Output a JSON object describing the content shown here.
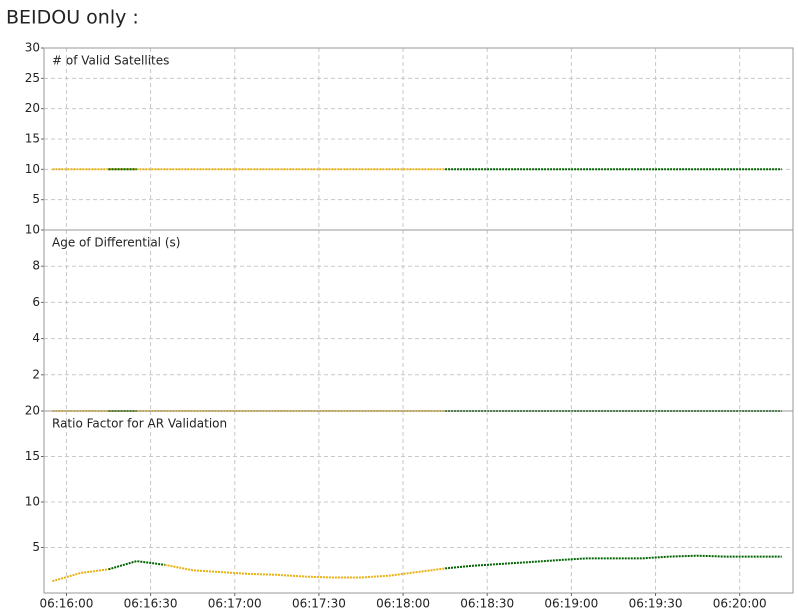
{
  "title": "BEIDOU only :",
  "chart_data": [
    {
      "type": "line",
      "title": "# of Valid Satellites",
      "x": [
        "06:15:55",
        "06:16:05",
        "06:16:15",
        "06:16:25",
        "06:16:35",
        "06:16:45",
        "06:16:55",
        "06:17:05",
        "06:17:15",
        "06:17:25",
        "06:17:35",
        "06:17:45",
        "06:17:55",
        "06:18:05",
        "06:18:15",
        "06:18:25",
        "06:18:35",
        "06:18:45",
        "06:18:55",
        "06:19:05",
        "06:19:15",
        "06:19:25",
        "06:19:35",
        "06:19:45",
        "06:19:55",
        "06:20:05",
        "06:20:15"
      ],
      "xlim": [
        "06:15:52",
        "06:20:19"
      ],
      "ylim": [
        0,
        30
      ],
      "yticks": [
        5,
        10,
        15,
        20,
        25,
        30
      ],
      "grid": true,
      "series": [
        {
          "color": "#e8b010",
          "values": [
            10,
            10,
            10,
            10,
            10,
            10,
            10,
            10,
            10,
            10,
            10,
            10,
            10,
            10,
            10,
            null,
            null,
            null,
            null,
            null,
            null,
            null,
            null,
            null,
            null,
            null,
            null
          ]
        },
        {
          "color": "#006400",
          "values": [
            null,
            null,
            10,
            10,
            null,
            null,
            null,
            null,
            null,
            null,
            null,
            null,
            null,
            null,
            10,
            10,
            10,
            10,
            10,
            10,
            10,
            10,
            10,
            10,
            10,
            10,
            10
          ]
        }
      ]
    },
    {
      "type": "line",
      "title": "Age of Differential (s)",
      "x": [
        "06:15:55",
        "06:16:05",
        "06:16:15",
        "06:16:25",
        "06:16:35",
        "06:16:45",
        "06:16:55",
        "06:17:05",
        "06:17:15",
        "06:17:25",
        "06:17:35",
        "06:17:45",
        "06:17:55",
        "06:18:05",
        "06:18:15",
        "06:18:25",
        "06:18:35",
        "06:18:45",
        "06:18:55",
        "06:19:05",
        "06:19:15",
        "06:19:25",
        "06:19:35",
        "06:19:45",
        "06:19:55",
        "06:20:05",
        "06:20:15"
      ],
      "xlim": [
        "06:15:52",
        "06:20:19"
      ],
      "ylim": [
        0,
        10
      ],
      "yticks": [
        2,
        4,
        6,
        8,
        10
      ],
      "grid": true,
      "series": [
        {
          "color": "#e8b010",
          "values": [
            0,
            0,
            0,
            0,
            0,
            0,
            0,
            0,
            0,
            0,
            0,
            0,
            0,
            0,
            0,
            null,
            null,
            null,
            null,
            null,
            null,
            null,
            null,
            null,
            null,
            null,
            null
          ]
        },
        {
          "color": "#006400",
          "values": [
            null,
            null,
            0,
            0,
            null,
            null,
            null,
            null,
            null,
            null,
            null,
            null,
            null,
            null,
            0,
            0,
            0,
            0,
            0,
            0,
            0,
            0,
            0,
            0,
            0,
            0,
            0
          ]
        }
      ]
    },
    {
      "type": "line",
      "title": "Ratio Factor for AR Validation",
      "x": [
        "06:15:55",
        "06:16:05",
        "06:16:15",
        "06:16:25",
        "06:16:35",
        "06:16:45",
        "06:16:55",
        "06:17:05",
        "06:17:15",
        "06:17:25",
        "06:17:35",
        "06:17:45",
        "06:17:55",
        "06:18:05",
        "06:18:15",
        "06:18:25",
        "06:18:35",
        "06:18:45",
        "06:18:55",
        "06:19:05",
        "06:19:15",
        "06:19:25",
        "06:19:35",
        "06:19:45",
        "06:19:55",
        "06:20:05",
        "06:20:15"
      ],
      "xlim": [
        "06:15:52",
        "06:20:19"
      ],
      "xticks": [
        "06:16:00",
        "06:16:30",
        "06:17:00",
        "06:17:30",
        "06:18:00",
        "06:18:30",
        "06:19:00",
        "06:19:30",
        "06:20:00"
      ],
      "ylim": [
        0,
        20
      ],
      "yticks": [
        5,
        10,
        15,
        20
      ],
      "grid": true,
      "series": [
        {
          "color": "#e8b010",
          "values": [
            1.3,
            2.2,
            2.6,
            null,
            3.1,
            2.5,
            2.3,
            2.1,
            2.0,
            1.8,
            1.7,
            1.7,
            1.9,
            2.3,
            2.7,
            null,
            null,
            null,
            null,
            null,
            null,
            null,
            null,
            null,
            null,
            null,
            null
          ]
        },
        {
          "color": "#006400",
          "values": [
            null,
            null,
            2.6,
            3.5,
            3.1,
            null,
            null,
            null,
            null,
            null,
            null,
            null,
            null,
            null,
            2.7,
            3.0,
            3.2,
            3.4,
            3.6,
            3.8,
            3.8,
            3.8,
            4.0,
            4.1,
            4.0,
            4.0,
            4.0
          ]
        }
      ]
    }
  ]
}
